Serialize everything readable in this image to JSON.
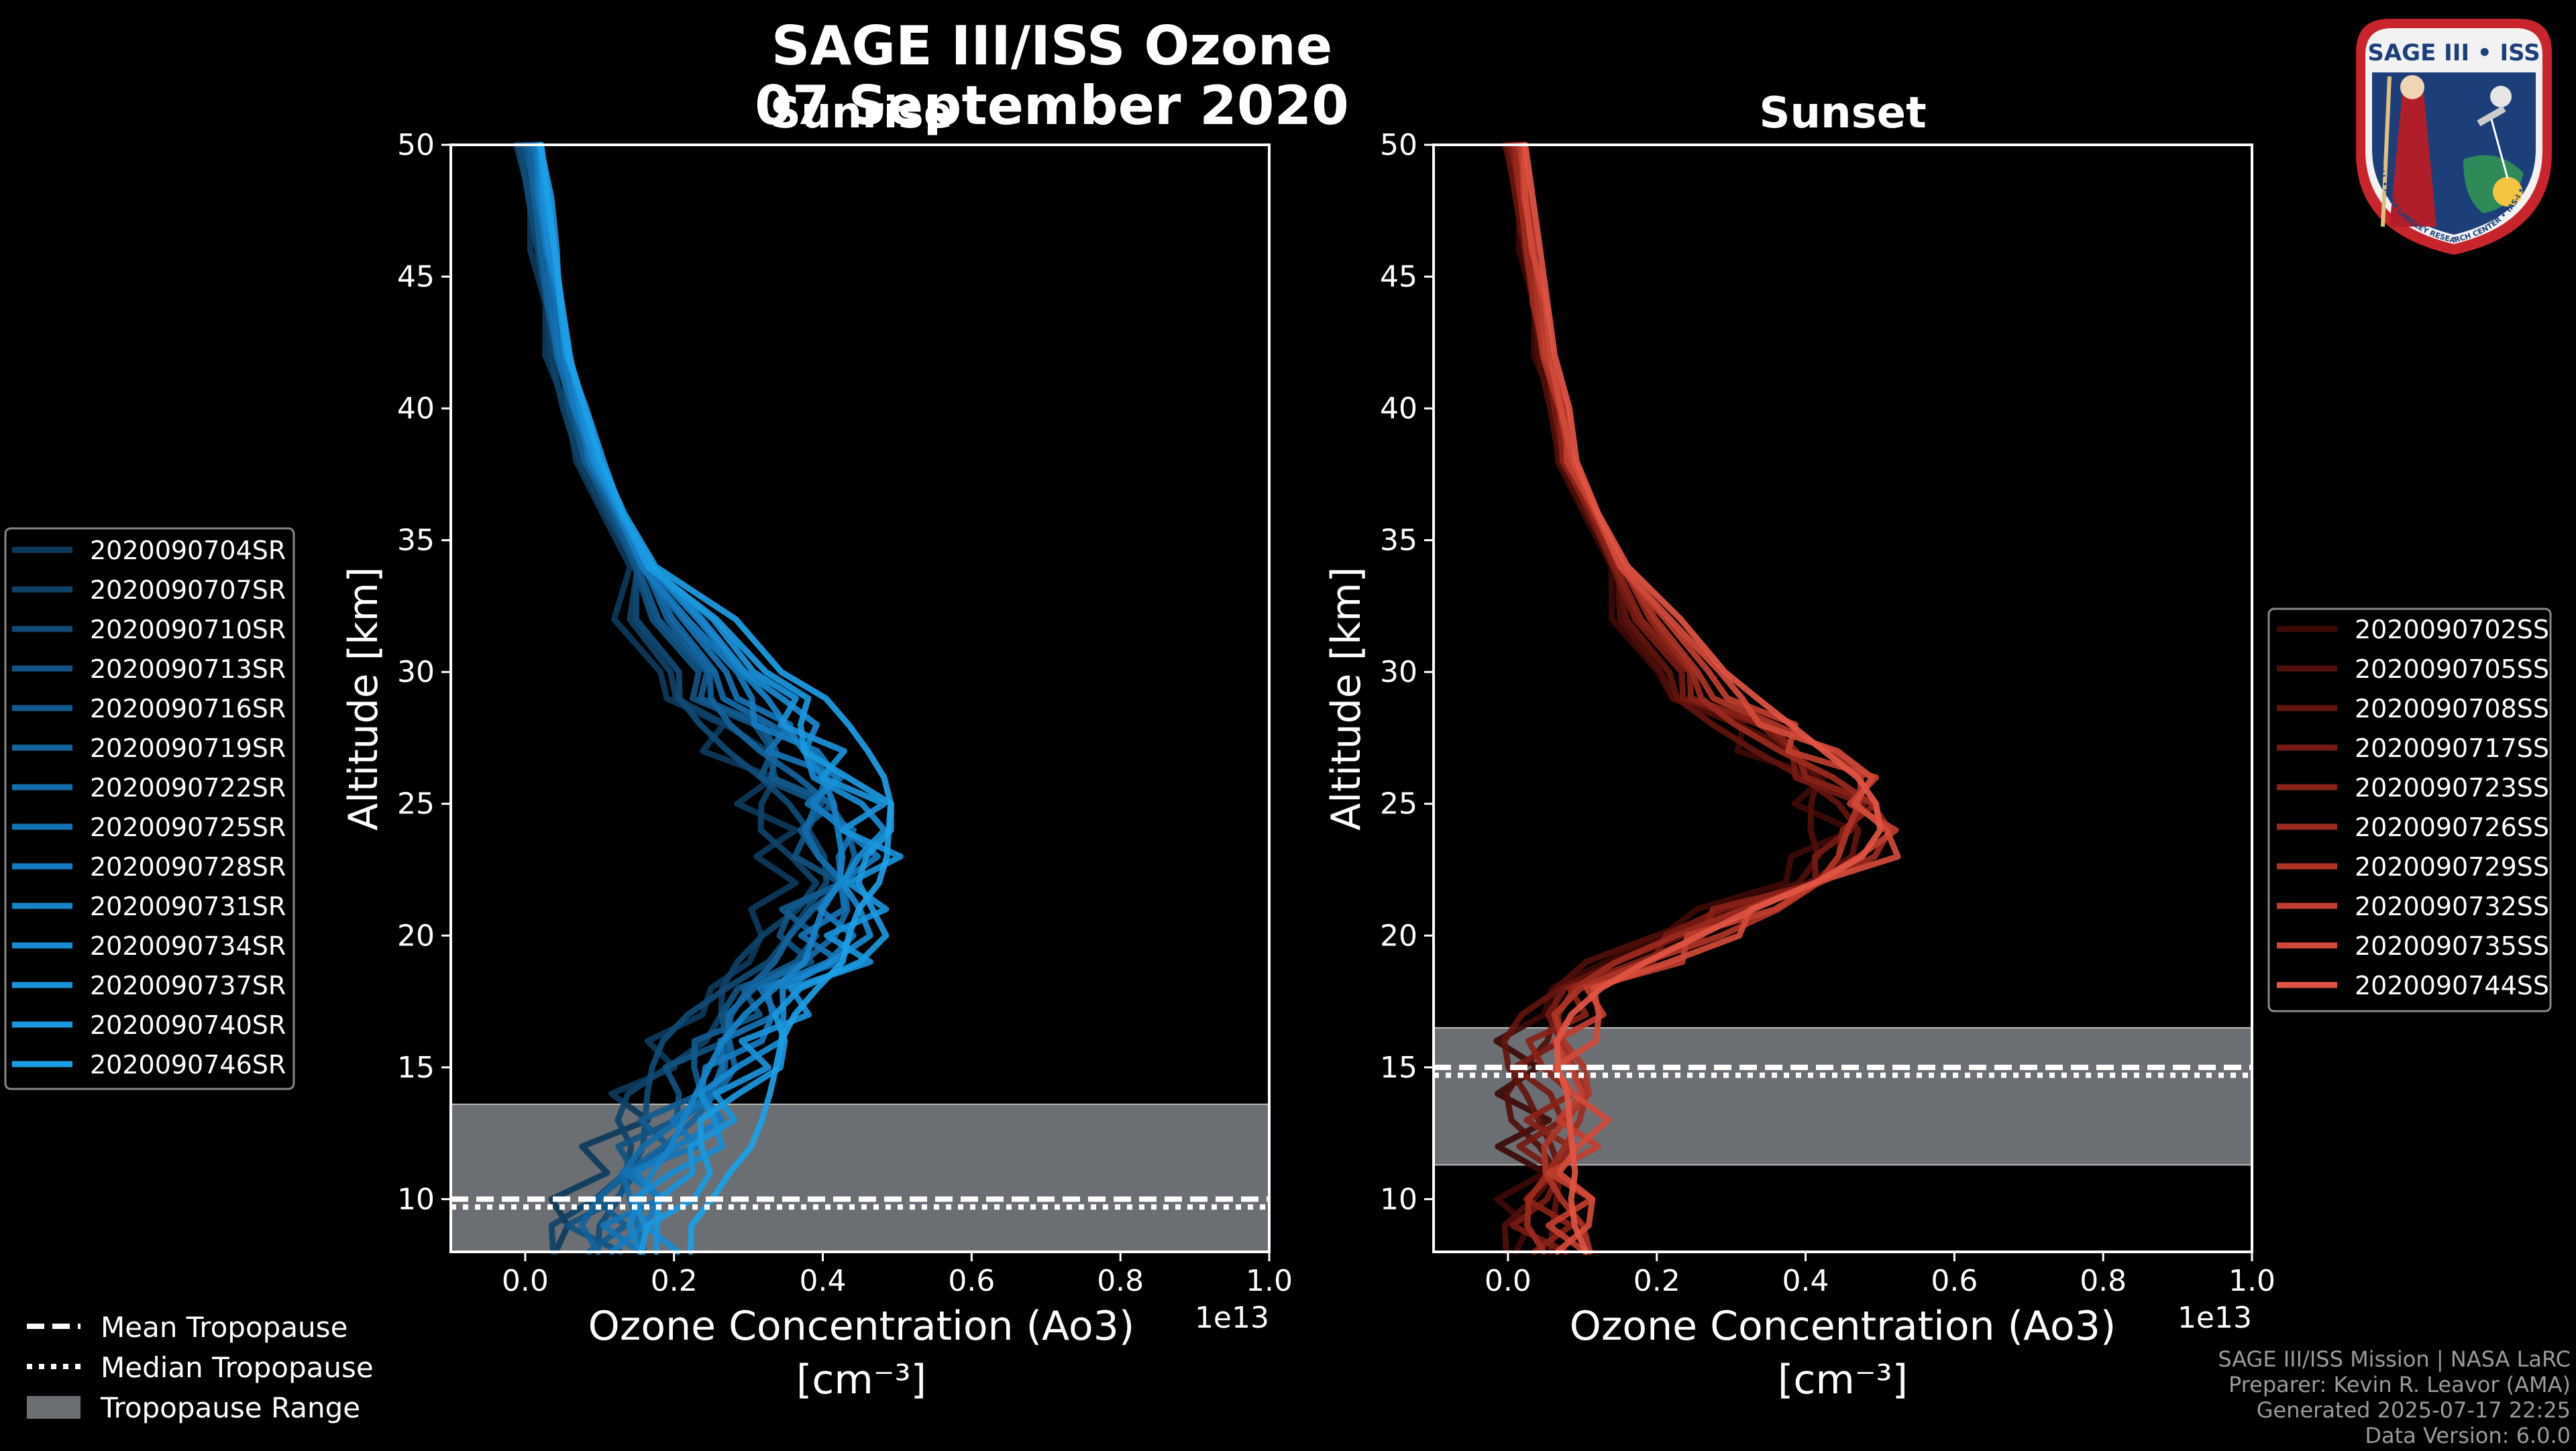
{
  "chart_data": {
    "title_line1": "SAGE III/ISS Ozone",
    "title_line2": "07 September 2020",
    "panels": [
      {
        "type": "line",
        "title": "Sunrise",
        "xlabel": "Ozone Concentration (Ao3)",
        "xunit_label": "[cm⁻³]",
        "ylabel": "Altitude [km]",
        "xlim": [
          -0.1,
          1.0
        ],
        "ylim": [
          8,
          50
        ],
        "xticks": [
          "0.0",
          "0.2",
          "0.4",
          "0.6",
          "0.8",
          "1.0"
        ],
        "xtick_values": [
          0,
          0.2,
          0.4,
          0.6,
          0.8,
          1.0
        ],
        "yticks": [
          "10",
          "15",
          "20",
          "25",
          "30",
          "35",
          "40",
          "45",
          "50"
        ],
        "ytick_values": [
          10,
          15,
          20,
          25,
          30,
          35,
          40,
          45,
          50
        ],
        "x_multiplier": "1e13",
        "tropopause": {
          "mean": 10.0,
          "median": 9.7,
          "range": [
            8,
            13.6
          ]
        },
        "series": [
          {
            "name": "2020090704SR",
            "color": "#0d3a5c"
          },
          {
            "name": "2020090707SR",
            "color": "#0f4268"
          },
          {
            "name": "2020090710SR",
            "color": "#104a75"
          },
          {
            "name": "2020090713SR",
            "color": "#115282"
          },
          {
            "name": "2020090716SR",
            "color": "#125b8f"
          },
          {
            "name": "2020090719SR",
            "color": "#13639c"
          },
          {
            "name": "2020090722SR",
            "color": "#146ba9"
          },
          {
            "name": "2020090725SR",
            "color": "#1573b5"
          },
          {
            "name": "2020090728SR",
            "color": "#167bc0"
          },
          {
            "name": "2020090731SR",
            "color": "#1783c9"
          },
          {
            "name": "2020090734SR",
            "color": "#188bd2"
          },
          {
            "name": "2020090737SR",
            "color": "#1992da"
          },
          {
            "name": "2020090740SR",
            "color": "#1a99e0"
          },
          {
            "name": "2020090746SR",
            "color": "#1ba0e6"
          }
        ],
        "profile_shape": {
          "altitudes": [
            8,
            9,
            10,
            11,
            12,
            13,
            14,
            15,
            16,
            17,
            18,
            19,
            20,
            21,
            22,
            23,
            24,
            25,
            26,
            27,
            28,
            29,
            30,
            32,
            34,
            36,
            38,
            40,
            42,
            44,
            46,
            48,
            50
          ],
          "base_values": [
            0.14,
            0.13,
            0.15,
            0.17,
            0.2,
            0.22,
            0.24,
            0.26,
            0.28,
            0.31,
            0.35,
            0.39,
            0.4,
            0.41,
            0.43,
            0.43,
            0.42,
            0.41,
            0.39,
            0.36,
            0.33,
            0.3,
            0.27,
            0.21,
            0.16,
            0.12,
            0.09,
            0.07,
            0.05,
            0.04,
            0.03,
            0.02,
            0.01
          ],
          "offsets": [
            -0.09,
            -0.07,
            -0.06,
            -0.04,
            -0.03,
            -0.02,
            -0.01,
            0.0,
            0.01,
            0.02,
            0.03,
            0.04,
            0.05,
            0.07
          ]
        }
      },
      {
        "type": "line",
        "title": "Sunset",
        "xlabel": "Ozone Concentration (Ao3)",
        "xunit_label": "[cm⁻³]",
        "ylabel": "Altitude [km]",
        "xlim": [
          -0.1,
          1.0
        ],
        "ylim": [
          8,
          50
        ],
        "xticks": [
          "0.0",
          "0.2",
          "0.4",
          "0.6",
          "0.8",
          "1.0"
        ],
        "xtick_values": [
          0,
          0.2,
          0.4,
          0.6,
          0.8,
          1.0
        ],
        "yticks": [
          "10",
          "15",
          "20",
          "25",
          "30",
          "35",
          "40",
          "45",
          "50"
        ],
        "ytick_values": [
          10,
          15,
          20,
          25,
          30,
          35,
          40,
          45,
          50
        ],
        "x_multiplier": "1e13",
        "tropopause": {
          "mean": 15.0,
          "median": 14.7,
          "range": [
            11.3,
            16.5
          ]
        },
        "series": [
          {
            "name": "2020090702SS",
            "color": "#3d0a06"
          },
          {
            "name": "2020090705SS",
            "color": "#4f0f0a"
          },
          {
            "name": "2020090708SS",
            "color": "#62140e"
          },
          {
            "name": "2020090717SS",
            "color": "#761a13"
          },
          {
            "name": "2020090723SS",
            "color": "#892218"
          },
          {
            "name": "2020090726SS",
            "color": "#9c2a1e"
          },
          {
            "name": "2020090729SS",
            "color": "#ae3426"
          },
          {
            "name": "2020090732SS",
            "color": "#c03e2f"
          },
          {
            "name": "2020090735SS",
            "color": "#d14a39"
          },
          {
            "name": "2020090744SS",
            "color": "#e25544"
          }
        ],
        "profile_shape": {
          "altitudes": [
            8,
            9,
            10,
            11,
            12,
            13,
            14,
            15,
            16,
            17,
            18,
            19,
            20,
            21,
            22,
            23,
            24,
            25,
            26,
            27,
            28,
            29,
            30,
            32,
            34,
            36,
            38,
            40,
            42,
            44,
            46,
            48,
            50
          ],
          "base_values": [
            0.07,
            0.06,
            0.06,
            0.07,
            0.07,
            0.07,
            0.07,
            0.06,
            0.06,
            0.08,
            0.12,
            0.18,
            0.25,
            0.32,
            0.4,
            0.46,
            0.48,
            0.47,
            0.44,
            0.39,
            0.34,
            0.29,
            0.25,
            0.19,
            0.15,
            0.11,
            0.08,
            0.07,
            0.05,
            0.04,
            0.03,
            0.02,
            0.01
          ],
          "offsets": [
            -0.05,
            -0.04,
            -0.03,
            -0.02,
            -0.01,
            0.0,
            0.01,
            0.02,
            0.03,
            0.04
          ]
        }
      }
    ],
    "shared_legend": [
      {
        "label": "Mean Tropopause",
        "style": "dashed"
      },
      {
        "label": "Median Tropopause",
        "style": "dotted"
      },
      {
        "label": "Tropopause Range",
        "style": "patch"
      }
    ]
  },
  "footer": {
    "line1": "SAGE III/ISS Mission | NASA LaRC",
    "line2": "Preparer: Kevin R. Leavor (AMA)",
    "line3": "Generated 2025-07-17 22:25",
    "line4": "Data Version: 6.0.0"
  },
  "logo": {
    "title": "SAGE III • ISS",
    "ring_text": "BALL • NASA LANGLEY RESEARCH CENTER • TAS-I • ESA"
  },
  "colors": {
    "background": "#000000",
    "tropopause_band": "#6b6e72",
    "axes": "#ffffff"
  }
}
